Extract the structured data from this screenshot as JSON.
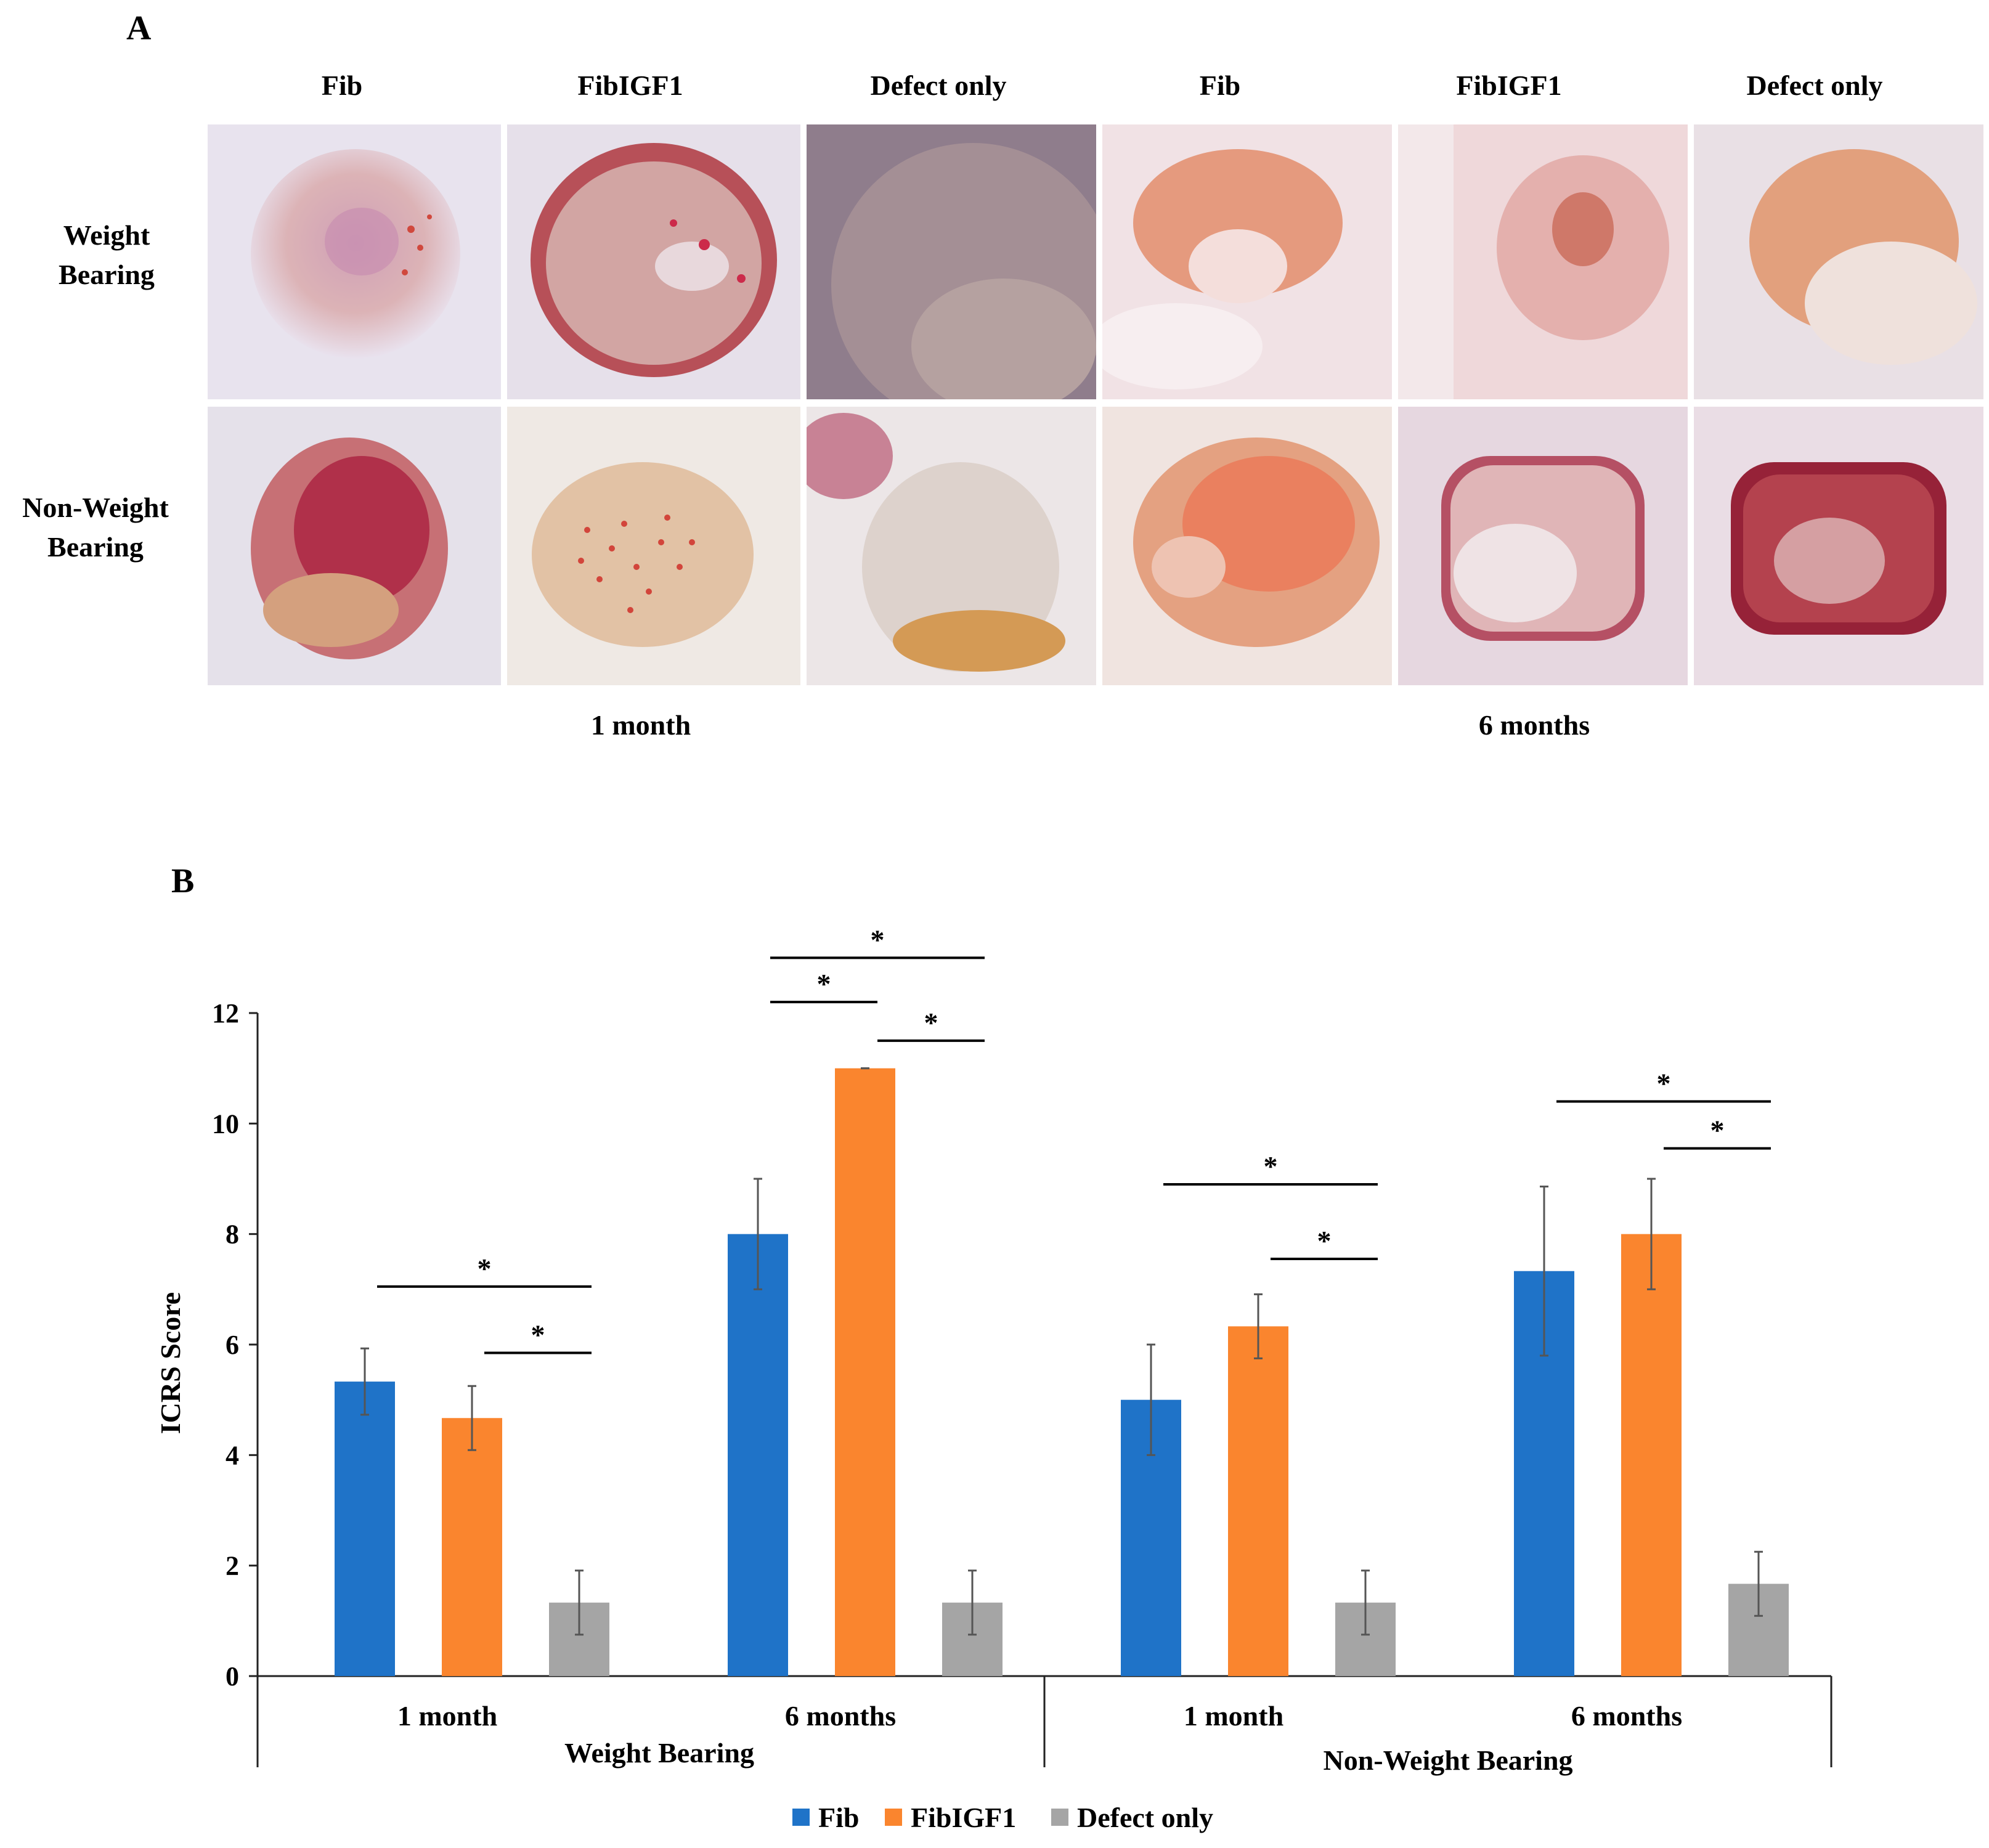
{
  "panel_a": {
    "letter": "A",
    "columns": [
      "Fib",
      "FibIGF1",
      "Defect only",
      "Fib",
      "FibIGF1",
      "Defect only"
    ],
    "rows": [
      {
        "line1": "Weight",
        "line2": "Bearing"
      },
      {
        "line1": "Non-Weight",
        "line2": "Bearing"
      }
    ],
    "periods": [
      "1 month",
      "6 months"
    ],
    "colors": {
      "background": "#ece7ee",
      "tissue_pink": "#d9a7ad",
      "tissue_orange": "#e49a6c",
      "tissue_red": "#b8414e",
      "tissue_dark": "#8f6f7e"
    }
  },
  "panel_b": {
    "letter": "B"
  },
  "chart_data": {
    "type": "bar",
    "title": "",
    "ylabel": "ICRS Score",
    "xlabel": "",
    "ylim": [
      0,
      12
    ],
    "yticks": [
      "0",
      "2",
      "4",
      "6",
      "8",
      "10",
      "12"
    ],
    "groups": [
      {
        "label": "1 month",
        "super": "Weight  Bearing"
      },
      {
        "label": "6 months",
        "super": "Weight  Bearing"
      },
      {
        "label": "1 month",
        "super": "Non-Weight  Bearing"
      },
      {
        "label": "6 months",
        "super": "Non-Weight  Bearing"
      }
    ],
    "super_groups": [
      "Weight  Bearing",
      "Non-Weight  Bearing"
    ],
    "series": [
      {
        "name": "Fib",
        "color": "#1f73c8",
        "values": [
          5.33,
          8.0,
          5.0,
          7.33
        ],
        "errors": [
          0.6,
          1.0,
          1.0,
          1.53
        ]
      },
      {
        "name": "FibIGF1",
        "color": "#fa852e",
        "values": [
          4.67,
          11.0,
          6.33,
          8.0
        ],
        "errors": [
          0.58,
          0.0,
          0.58,
          1.0
        ]
      },
      {
        "name": "Defect only",
        "color": "#a5a5a5",
        "values": [
          1.33,
          1.33,
          1.33,
          1.67
        ],
        "errors": [
          0.58,
          0.58,
          0.58,
          0.58
        ]
      }
    ],
    "significance": [
      {
        "group": 0,
        "from": 0,
        "to": 2,
        "label": "*",
        "level": 7.05
      },
      {
        "group": 0,
        "from": 1,
        "to": 2,
        "label": "*",
        "level": 5.85
      },
      {
        "group": 1,
        "from": 0,
        "to": 2,
        "label": "*",
        "level": 13.0
      },
      {
        "group": 1,
        "from": 0,
        "to": 1,
        "label": "*",
        "level": 12.2
      },
      {
        "group": 1,
        "from": 1,
        "to": 2,
        "label": "*",
        "level": 11.5
      },
      {
        "group": 2,
        "from": 0,
        "to": 2,
        "label": "*",
        "level": 8.9
      },
      {
        "group": 2,
        "from": 1,
        "to": 2,
        "label": "*",
        "level": 7.55
      },
      {
        "group": 3,
        "from": 0,
        "to": 2,
        "label": "*",
        "level": 10.4
      },
      {
        "group": 3,
        "from": 1,
        "to": 2,
        "label": "*",
        "level": 9.55
      }
    ],
    "legend": [
      "Fib",
      "FibIGF1",
      "Defect only"
    ],
    "legend_position": "bottom-center"
  }
}
